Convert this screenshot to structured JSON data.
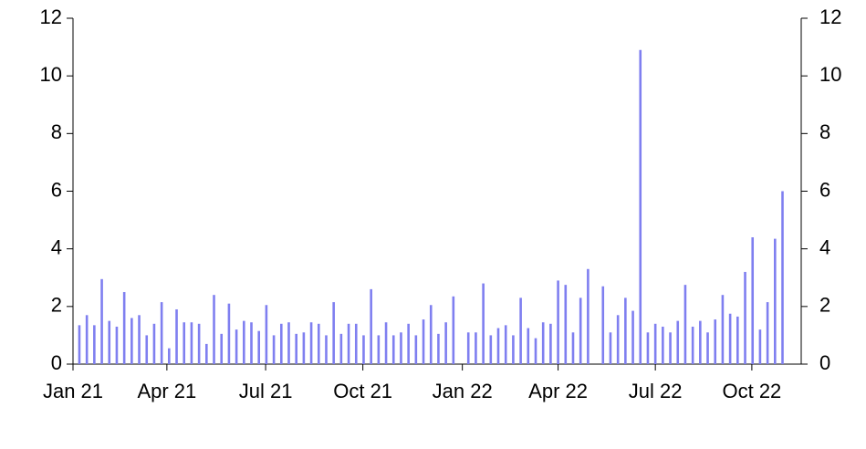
{
  "chart_data": {
    "type": "bar",
    "x": [
      0,
      1,
      2,
      3,
      4,
      5,
      6,
      7,
      8,
      9,
      10,
      11,
      12,
      13,
      14,
      15,
      16,
      17,
      18,
      19,
      20,
      21,
      22,
      23,
      24,
      25,
      26,
      27,
      28,
      29,
      30,
      31,
      32,
      33,
      34,
      35,
      36,
      37,
      38,
      39,
      40,
      41,
      42,
      43,
      44,
      45,
      46,
      47,
      48,
      49,
      50,
      51,
      52,
      53,
      54,
      55,
      56,
      57,
      58,
      59,
      60,
      61,
      62,
      63,
      64,
      65,
      66,
      67,
      68,
      69,
      70,
      71,
      72,
      73,
      74,
      75,
      76,
      77,
      78,
      79,
      80,
      81,
      82,
      83,
      84,
      85,
      86,
      87,
      88,
      89,
      90,
      91,
      92,
      93,
      94
    ],
    "values": [
      1.35,
      1.7,
      1.35,
      2.95,
      1.5,
      1.3,
      2.5,
      1.6,
      1.7,
      1.0,
      1.4,
      2.15,
      0.55,
      1.9,
      1.45,
      1.45,
      1.4,
      0.7,
      2.4,
      1.05,
      2.1,
      1.2,
      1.5,
      1.45,
      1.15,
      2.05,
      1.0,
      1.4,
      1.45,
      1.05,
      1.1,
      1.45,
      1.4,
      1.0,
      2.15,
      1.05,
      1.4,
      1.4,
      1.0,
      2.6,
      1.0,
      1.45,
      1.0,
      1.1,
      1.4,
      1.0,
      1.55,
      2.05,
      1.05,
      1.45,
      2.35,
      null,
      1.1,
      1.1,
      2.8,
      1.0,
      1.25,
      1.35,
      1.0,
      2.3,
      1.25,
      0.9,
      1.45,
      1.4,
      2.9,
      2.75,
      1.1,
      2.3,
      3.3,
      null,
      2.7,
      1.1,
      1.7,
      2.3,
      1.85,
      10.9,
      1.1,
      1.4,
      1.3,
      1.1,
      1.5,
      2.75,
      1.3,
      1.5,
      1.1,
      1.55,
      2.4,
      1.75,
      1.65,
      3.2,
      4.4,
      1.2,
      2.15,
      4.35,
      6.0
    ],
    "color": "#7f7ff0",
    "xlim": [
      -0.85,
      96.5
    ],
    "xticks": [
      {
        "value": -0.85,
        "label": "Jan 21"
      },
      {
        "value": 11.7,
        "label": "Apr 21"
      },
      {
        "value": 24.9,
        "label": "Jul 21"
      },
      {
        "value": 37.9,
        "label": "Oct 21"
      },
      {
        "value": 51.2,
        "label": "Jan 22"
      },
      {
        "value": 64.0,
        "label": "Apr 22"
      },
      {
        "value": 77.0,
        "label": "Jul 22"
      },
      {
        "value": 89.9,
        "label": "Oct 22"
      }
    ],
    "ylim": [
      0,
      12
    ],
    "yticks": [
      0,
      2,
      4,
      6,
      8,
      10,
      12
    ],
    "y2lim": [
      0,
      12
    ],
    "y2ticks": [
      0,
      2,
      4,
      6,
      8,
      10,
      12
    ]
  }
}
